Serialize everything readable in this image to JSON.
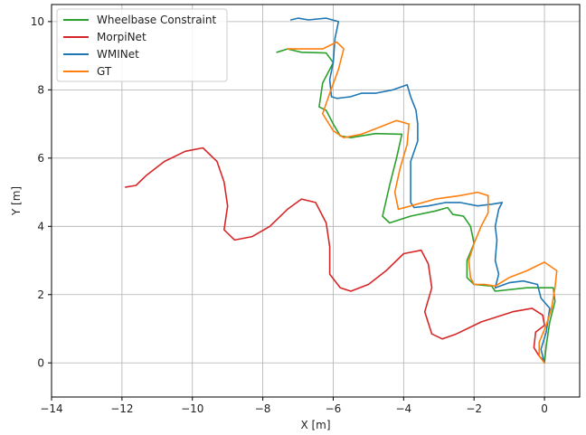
{
  "chart_data": {
    "type": "line",
    "title": "",
    "xlabel": "X [m]",
    "ylabel": "Y [m]",
    "xlim": [
      -14,
      1
    ],
    "ylim": [
      -1,
      10.5
    ],
    "xticks": [
      -14,
      -12,
      -10,
      -8,
      -6,
      -4,
      -2,
      0
    ],
    "yticks": [
      0,
      2,
      4,
      6,
      8,
      10
    ],
    "grid": true,
    "legend_position": "top-left",
    "series": [
      {
        "name": "Wheelbase Constraint",
        "color": "#2ca02c",
        "points": [
          [
            0,
            0
          ],
          [
            0.05,
            0.5
          ],
          [
            0.15,
            1.2
          ],
          [
            0.3,
            1.8
          ],
          [
            0.25,
            2.2
          ],
          [
            -0.5,
            2.2
          ],
          [
            -1.4,
            2.1
          ],
          [
            -1.5,
            2.25
          ],
          [
            -2.0,
            2.3
          ],
          [
            -2.2,
            2.5
          ],
          [
            -2.2,
            3.0
          ],
          [
            -2.0,
            3.5
          ],
          [
            -2.1,
            4.0
          ],
          [
            -2.3,
            4.3
          ],
          [
            -2.6,
            4.35
          ],
          [
            -2.75,
            4.55
          ],
          [
            -3.1,
            4.45
          ],
          [
            -3.8,
            4.3
          ],
          [
            -4.4,
            4.1
          ],
          [
            -4.6,
            4.3
          ],
          [
            -4.4,
            5.2
          ],
          [
            -4.2,
            6.0
          ],
          [
            -4.05,
            6.7
          ],
          [
            -4.8,
            6.72
          ],
          [
            -5.5,
            6.6
          ],
          [
            -5.8,
            6.65
          ],
          [
            -6.0,
            7.0
          ],
          [
            -6.2,
            7.4
          ],
          [
            -6.4,
            7.5
          ],
          [
            -6.3,
            8.2
          ],
          [
            -6.0,
            8.8
          ],
          [
            -6.2,
            9.08
          ],
          [
            -6.9,
            9.1
          ],
          [
            -7.3,
            9.2
          ],
          [
            -7.6,
            9.1
          ]
        ]
      },
      {
        "name": "MorpiNet",
        "color": "#d62728",
        "points": [
          [
            0,
            0.05
          ],
          [
            -0.15,
            0.2
          ],
          [
            -0.3,
            0.45
          ],
          [
            -0.25,
            0.9
          ],
          [
            0.0,
            1.1
          ],
          [
            -0.05,
            1.4
          ],
          [
            -0.35,
            1.6
          ],
          [
            -0.9,
            1.5
          ],
          [
            -1.8,
            1.2
          ],
          [
            -2.5,
            0.85
          ],
          [
            -2.9,
            0.7
          ],
          [
            -3.2,
            0.85
          ],
          [
            -3.4,
            1.5
          ],
          [
            -3.2,
            2.2
          ],
          [
            -3.3,
            2.9
          ],
          [
            -3.5,
            3.3
          ],
          [
            -4.0,
            3.2
          ],
          [
            -4.5,
            2.7
          ],
          [
            -5.0,
            2.3
          ],
          [
            -5.5,
            2.1
          ],
          [
            -5.8,
            2.2
          ],
          [
            -6.1,
            2.6
          ],
          [
            -6.1,
            3.4
          ],
          [
            -6.2,
            4.1
          ],
          [
            -6.5,
            4.7
          ],
          [
            -6.9,
            4.8
          ],
          [
            -7.3,
            4.5
          ],
          [
            -7.8,
            4.0
          ],
          [
            -8.3,
            3.7
          ],
          [
            -8.8,
            3.6
          ],
          [
            -9.1,
            3.9
          ],
          [
            -9.0,
            4.6
          ],
          [
            -9.1,
            5.3
          ],
          [
            -9.3,
            5.9
          ],
          [
            -9.7,
            6.3
          ],
          [
            -10.2,
            6.2
          ],
          [
            -10.8,
            5.9
          ],
          [
            -11.3,
            5.5
          ],
          [
            -11.6,
            5.2
          ],
          [
            -11.9,
            5.15
          ]
        ]
      },
      {
        "name": "WMINet",
        "color": "#1f77b4",
        "points": [
          [
            0,
            0
          ],
          [
            -0.1,
            0.4
          ],
          [
            0.05,
            0.9
          ],
          [
            0.15,
            1.6
          ],
          [
            -0.1,
            1.9
          ],
          [
            -0.2,
            2.3
          ],
          [
            -0.6,
            2.4
          ],
          [
            -1.0,
            2.35
          ],
          [
            -1.4,
            2.2
          ],
          [
            -1.3,
            2.6
          ],
          [
            -1.4,
            3.0
          ],
          [
            -1.35,
            3.6
          ],
          [
            -1.4,
            4.0
          ],
          [
            -1.3,
            4.5
          ],
          [
            -1.2,
            4.7
          ],
          [
            -1.5,
            4.65
          ],
          [
            -1.9,
            4.6
          ],
          [
            -2.4,
            4.7
          ],
          [
            -2.8,
            4.7
          ],
          [
            -3.3,
            4.6
          ],
          [
            -3.7,
            4.55
          ],
          [
            -3.8,
            4.7
          ],
          [
            -3.8,
            5.2
          ],
          [
            -3.8,
            5.9
          ],
          [
            -3.6,
            6.5
          ],
          [
            -3.6,
            7.0
          ],
          [
            -3.65,
            7.4
          ],
          [
            -3.8,
            7.8
          ],
          [
            -3.9,
            8.15
          ],
          [
            -4.3,
            8.0
          ],
          [
            -4.8,
            7.9
          ],
          [
            -5.2,
            7.9
          ],
          [
            -5.5,
            7.8
          ],
          [
            -5.9,
            7.75
          ],
          [
            -6.05,
            7.8
          ],
          [
            -6.1,
            8.3
          ],
          [
            -6.0,
            8.8
          ],
          [
            -5.95,
            9.5
          ],
          [
            -5.85,
            10.0
          ],
          [
            -6.2,
            10.1
          ],
          [
            -6.7,
            10.05
          ],
          [
            -7.0,
            10.1
          ],
          [
            -7.2,
            10.05
          ]
        ]
      },
      {
        "name": "GT",
        "color": "#ff7f0e",
        "points": [
          [
            0,
            0.0
          ],
          [
            -0.15,
            0.2
          ],
          [
            -0.15,
            0.6
          ],
          [
            0.05,
            1.1
          ],
          [
            0.2,
            1.6
          ],
          [
            0.3,
            2.2
          ],
          [
            0.35,
            2.7
          ],
          [
            0.0,
            2.95
          ],
          [
            -0.5,
            2.7
          ],
          [
            -1.0,
            2.5
          ],
          [
            -1.4,
            2.25
          ],
          [
            -1.7,
            2.3
          ],
          [
            -2.0,
            2.3
          ],
          [
            -2.1,
            2.5
          ],
          [
            -2.15,
            3.0
          ],
          [
            -2.0,
            3.5
          ],
          [
            -1.8,
            4.0
          ],
          [
            -1.6,
            4.4
          ],
          [
            -1.6,
            4.9
          ],
          [
            -1.9,
            5.0
          ],
          [
            -2.4,
            4.9
          ],
          [
            -3.1,
            4.8
          ],
          [
            -3.8,
            4.6
          ],
          [
            -4.15,
            4.5
          ],
          [
            -4.25,
            5.0
          ],
          [
            -4.1,
            5.7
          ],
          [
            -3.9,
            6.4
          ],
          [
            -3.85,
            7.0
          ],
          [
            -4.2,
            7.1
          ],
          [
            -4.7,
            6.9
          ],
          [
            -5.2,
            6.7
          ],
          [
            -5.7,
            6.6
          ],
          [
            -6.0,
            6.8
          ],
          [
            -6.3,
            7.3
          ],
          [
            -6.1,
            7.9
          ],
          [
            -5.85,
            8.6
          ],
          [
            -5.7,
            9.2
          ],
          [
            -5.9,
            9.4
          ],
          [
            -6.3,
            9.2
          ],
          [
            -6.9,
            9.2
          ],
          [
            -7.3,
            9.2
          ]
        ]
      }
    ]
  }
}
